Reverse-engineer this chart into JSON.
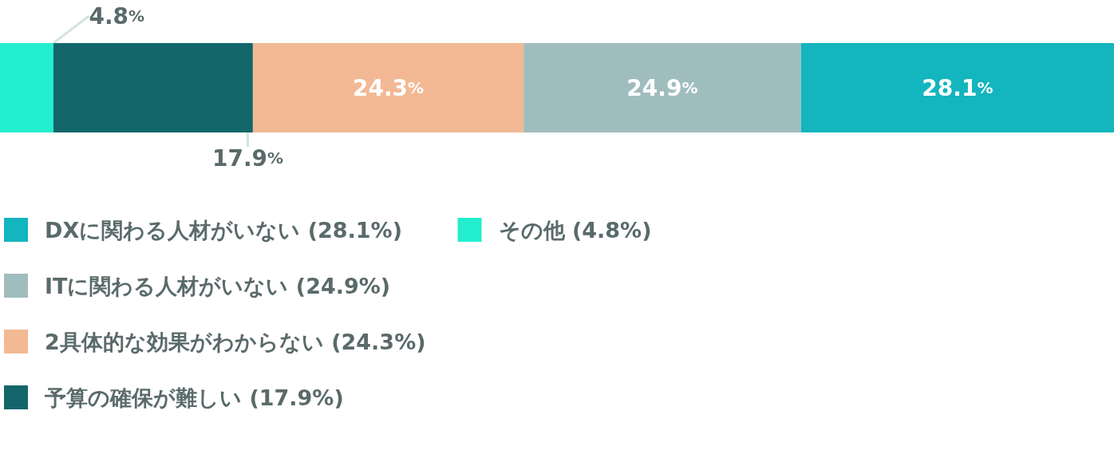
{
  "chart_data": {
    "type": "bar",
    "orientation": "horizontal",
    "stacked": true,
    "categories": [
      null
    ],
    "xlim": [
      0,
      100
    ],
    "tick_labels": false,
    "grid": false,
    "legend": "bottom left",
    "series": [
      {
        "name": "その他 (4.8%)",
        "color": "#23eecf",
        "values": [
          4.8
        ],
        "value_labels": [
          "4.8%"
        ]
      },
      {
        "name": "予算の確保が難しい (17.9%)",
        "color": "#12666a",
        "values": [
          17.9
        ],
        "value_labels": [
          "17.9%"
        ]
      },
      {
        "name": "2具体的な効果がわからない (24.3%)",
        "color": "#f2b994",
        "values": [
          24.3
        ],
        "value_labels": [
          "24.3%"
        ]
      },
      {
        "name": "ITに関わる人材がいない (24.9%)",
        "color": "#a0bdbe",
        "values": [
          24.9
        ],
        "value_labels": [
          "24.9%"
        ]
      },
      {
        "name": "DXに関わる人材がいない (28.1%)",
        "color": "#13b5be",
        "values": [
          28.1
        ],
        "value_labels": [
          "28.1%"
        ]
      }
    ]
  }
}
